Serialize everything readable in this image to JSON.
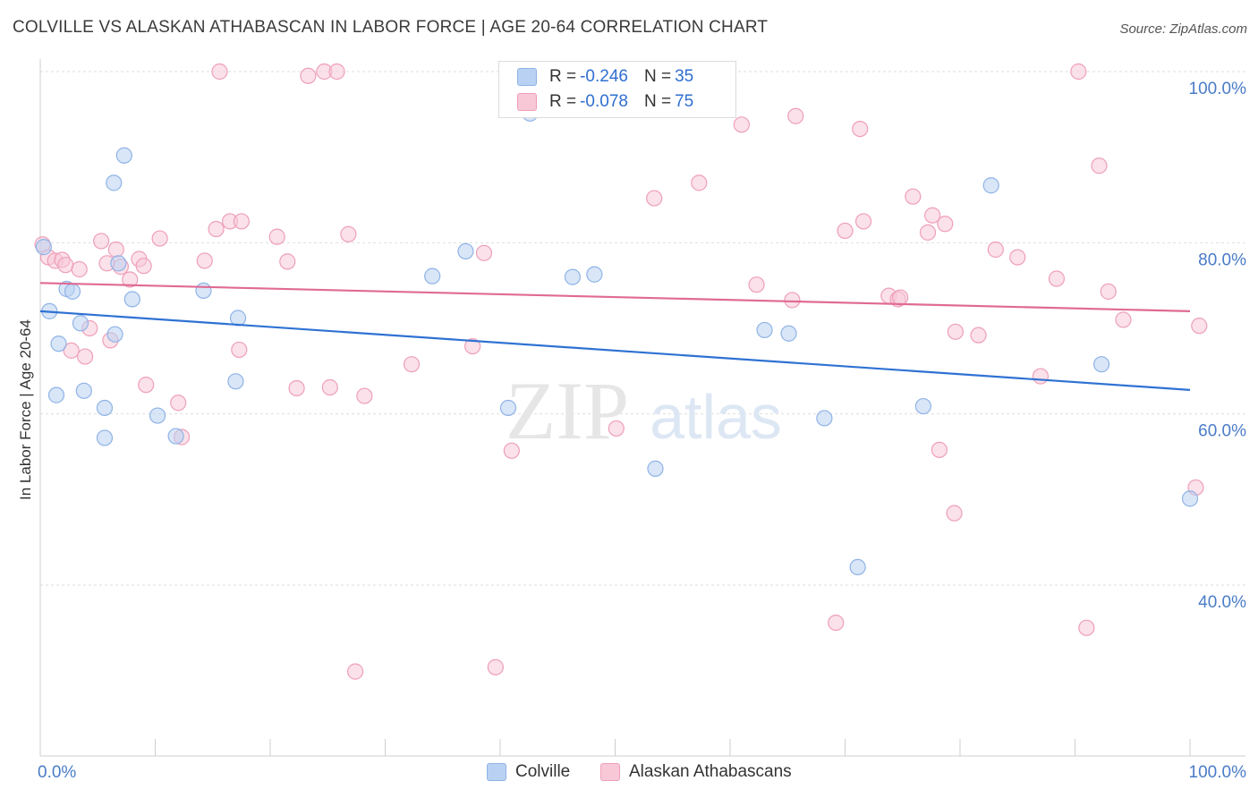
{
  "title": "COLVILLE VS ALASKAN ATHABASCAN IN LABOR FORCE | AGE 20-64 CORRELATION CHART",
  "source": "Source: ZipAtlas.com",
  "watermark": {
    "zip": "ZIP",
    "atlas": "atlas"
  },
  "colors": {
    "colville_fill": "#b9d2f3",
    "colville_stroke": "#8fb3e6",
    "colville_line": "#2f72d3",
    "athabascan_fill": "#f8c8d7",
    "athabascan_stroke": "#ee9fb9",
    "athabascan_line": "#e06a94"
  },
  "legend": {
    "r_label": "R =",
    "n_label": "N =",
    "rows": [
      {
        "key": "colville",
        "r": "-0.246",
        "n": "35"
      },
      {
        "key": "athabascan",
        "r": "-0.078",
        "n": "75"
      }
    ]
  },
  "bottom_legend": [
    "Colville",
    "Alaskan Athabascans"
  ],
  "chart_data": {
    "type": "scatter",
    "title": "COLVILLE VS ALASKAN ATHABASCAN IN LABOR FORCE | AGE 20-64 CORRELATION CHART",
    "xlabel": "",
    "ylabel": "In Labor Force | Age 20-64",
    "xlim": [
      0,
      100
    ],
    "ylim": [
      22,
      102
    ],
    "x_tick_labels": [
      "0.0%",
      "100.0%"
    ],
    "y_ticks": [
      {
        "value": 40,
        "label": "40.0%"
      },
      {
        "value": 60,
        "label": "60.0%"
      },
      {
        "value": 80,
        "label": "80.0%"
      },
      {
        "value": 100,
        "label": "100.0%"
      }
    ],
    "grid": "horizontal dashed",
    "series": [
      {
        "name": "Colville",
        "trend": {
          "x": [
            0,
            100
          ],
          "y": [
            72.0,
            62.8
          ]
        },
        "points": [
          [
            0.8,
            72.0
          ],
          [
            1.6,
            68.2
          ],
          [
            2.3,
            74.6
          ],
          [
            2.8,
            74.3
          ],
          [
            3.5,
            70.6
          ],
          [
            3.8,
            62.7
          ],
          [
            1.4,
            62.2
          ],
          [
            5.6,
            60.7
          ],
          [
            5.6,
            57.2
          ],
          [
            6.5,
            69.3
          ],
          [
            6.8,
            77.6
          ],
          [
            6.4,
            87.0
          ],
          [
            7.3,
            90.2
          ],
          [
            8.0,
            73.4
          ],
          [
            10.2,
            59.8
          ],
          [
            11.8,
            57.4
          ],
          [
            14.2,
            74.4
          ],
          [
            17.2,
            71.2
          ],
          [
            17.0,
            63.8
          ],
          [
            0.3,
            79.5
          ],
          [
            34.1,
            76.1
          ],
          [
            37.0,
            79.0
          ],
          [
            40.7,
            60.7
          ],
          [
            42.6,
            95.1
          ],
          [
            46.3,
            76.0
          ],
          [
            48.2,
            76.3
          ],
          [
            53.5,
            53.6
          ],
          [
            63.0,
            69.8
          ],
          [
            65.1,
            69.4
          ],
          [
            68.2,
            59.5
          ],
          [
            71.1,
            42.1
          ],
          [
            76.8,
            60.9
          ],
          [
            82.7,
            86.7
          ],
          [
            92.3,
            65.8
          ],
          [
            100.0,
            50.1
          ]
        ]
      },
      {
        "name": "Alaskan Athabascans",
        "trend": {
          "x": [
            0,
            100
          ],
          "y": [
            75.3,
            72.0
          ]
        },
        "points": [
          [
            0.2,
            79.8
          ],
          [
            0.7,
            78.3
          ],
          [
            1.3,
            77.9
          ],
          [
            1.9,
            78.0
          ],
          [
            2.2,
            77.4
          ],
          [
            2.7,
            67.4
          ],
          [
            3.4,
            76.9
          ],
          [
            3.9,
            66.7
          ],
          [
            4.3,
            70.0
          ],
          [
            5.3,
            80.2
          ],
          [
            5.8,
            77.6
          ],
          [
            6.1,
            68.6
          ],
          [
            6.6,
            79.2
          ],
          [
            7.0,
            77.2
          ],
          [
            7.8,
            75.7
          ],
          [
            8.6,
            78.1
          ],
          [
            9.0,
            77.3
          ],
          [
            9.2,
            63.4
          ],
          [
            10.4,
            80.5
          ],
          [
            12.0,
            61.3
          ],
          [
            12.3,
            57.3
          ],
          [
            14.3,
            77.9
          ],
          [
            15.3,
            81.6
          ],
          [
            15.6,
            100.0
          ],
          [
            16.5,
            82.5
          ],
          [
            17.5,
            82.5
          ],
          [
            17.3,
            67.5
          ],
          [
            20.6,
            80.7
          ],
          [
            21.5,
            77.8
          ],
          [
            22.3,
            63.0
          ],
          [
            23.3,
            99.5
          ],
          [
            24.7,
            100.0
          ],
          [
            25.2,
            63.1
          ],
          [
            25.8,
            100.0
          ],
          [
            26.8,
            81.0
          ],
          [
            27.4,
            29.9
          ],
          [
            28.2,
            62.1
          ],
          [
            32.3,
            65.8
          ],
          [
            37.6,
            67.9
          ],
          [
            38.6,
            78.8
          ],
          [
            39.6,
            30.4
          ],
          [
            41.0,
            55.7
          ],
          [
            50.1,
            58.3
          ],
          [
            53.4,
            85.2
          ],
          [
            57.3,
            87.0
          ],
          [
            61.0,
            93.8
          ],
          [
            62.3,
            75.1
          ],
          [
            65.4,
            73.3
          ],
          [
            65.7,
            94.8
          ],
          [
            69.2,
            35.6
          ],
          [
            70.0,
            81.4
          ],
          [
            71.3,
            93.3
          ],
          [
            71.6,
            82.5
          ],
          [
            73.8,
            73.8
          ],
          [
            74.6,
            73.4
          ],
          [
            74.8,
            73.6
          ],
          [
            75.9,
            85.4
          ],
          [
            77.2,
            81.2
          ],
          [
            77.6,
            83.2
          ],
          [
            78.2,
            55.8
          ],
          [
            78.7,
            82.2
          ],
          [
            79.5,
            48.4
          ],
          [
            79.6,
            69.6
          ],
          [
            81.6,
            69.2
          ],
          [
            83.1,
            79.2
          ],
          [
            85.0,
            78.3
          ],
          [
            87.0,
            64.4
          ],
          [
            88.4,
            75.8
          ],
          [
            90.3,
            100.0
          ],
          [
            91.0,
            35.0
          ],
          [
            92.1,
            89.0
          ],
          [
            92.9,
            74.3
          ],
          [
            94.2,
            71.0
          ],
          [
            100.5,
            51.4
          ],
          [
            100.8,
            70.3
          ]
        ]
      }
    ]
  }
}
